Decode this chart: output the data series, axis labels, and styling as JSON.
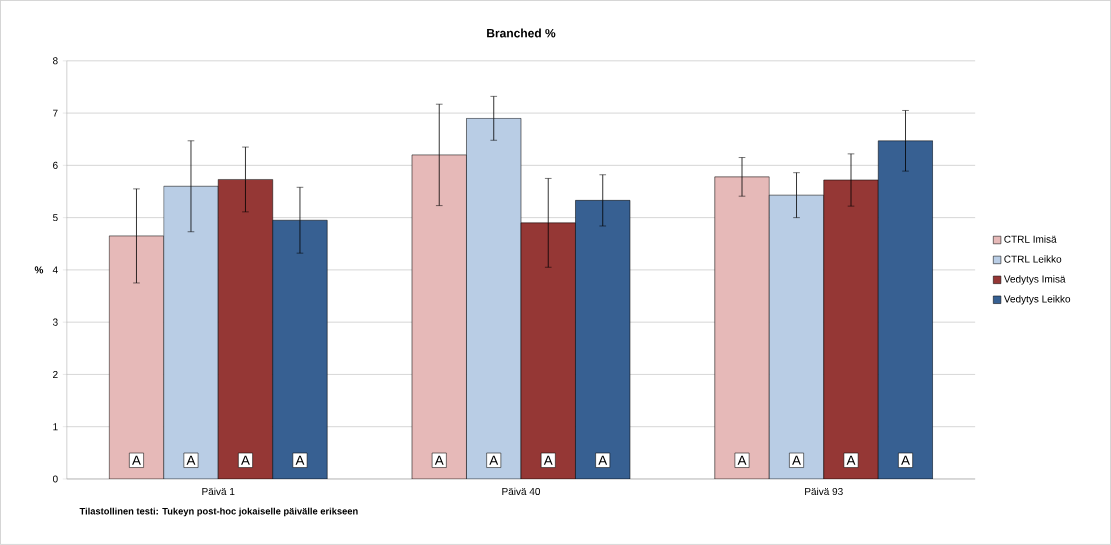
{
  "chart_data": {
    "type": "bar",
    "title": "Branched %",
    "ylabel": "%",
    "categories": [
      "Päivä 1",
      "Päivä 40",
      "Päivä 93"
    ],
    "series": [
      {
        "name": "CTRL Imisä",
        "color": "#e6b9b8",
        "values": [
          4.65,
          6.2,
          5.78
        ],
        "errors": [
          0.9,
          0.97,
          0.37
        ]
      },
      {
        "name": "CTRL Leikko",
        "color": "#b9cde5",
        "values": [
          5.6,
          6.9,
          5.43
        ],
        "errors": [
          0.87,
          0.42,
          0.43
        ]
      },
      {
        "name": "Vedytys Imisä",
        "color": "#953735",
        "values": [
          5.73,
          4.9,
          5.72
        ],
        "errors": [
          0.62,
          0.85,
          0.5
        ]
      },
      {
        "name": "Vedytys Leikko",
        "color": "#376092",
        "values": [
          4.95,
          5.33,
          6.47
        ],
        "errors": [
          0.63,
          0.49,
          0.58
        ]
      }
    ],
    "ylim": [
      0,
      8
    ],
    "yticks": [
      0,
      1,
      2,
      3,
      4,
      5,
      6,
      7,
      8
    ],
    "grid": "y",
    "legend": "right",
    "annotations": [
      "A",
      "A",
      "A",
      "A",
      "A",
      "A",
      "A",
      "A",
      "A",
      "A",
      "A",
      "A",
      "Tilastollinen testi: Tukeyn post-hoc jokaiselle päivälle erikseen"
    ]
  }
}
